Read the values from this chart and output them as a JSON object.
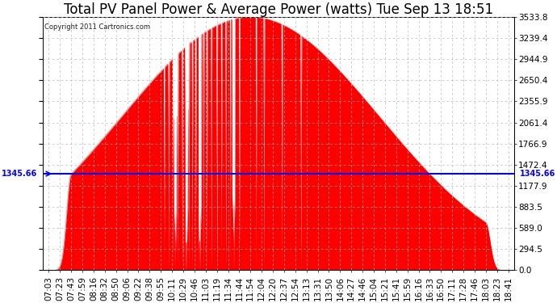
{
  "title": "Total PV Panel Power & Average Power (watts) Tue Sep 13 18:51",
  "copyright": "Copyright 2011 Cartronics.com",
  "ymax": 3533.8,
  "ymin": 0.0,
  "yticks": [
    0.0,
    294.5,
    589.0,
    883.5,
    1177.9,
    1472.4,
    1766.9,
    2061.4,
    2355.9,
    2650.4,
    2944.9,
    3239.4,
    3533.8
  ],
  "avg_line_y": 1345.66,
  "avg_label": "1345.66",
  "background_color": "#ffffff",
  "fill_color": "#ff0000",
  "avg_line_color": "#0000ff",
  "grid_color": "#bbbbbb",
  "title_fontsize": 12,
  "tick_fontsize": 7.5,
  "xtick_labels": [
    "07:03",
    "07:23",
    "07:43",
    "07:59",
    "08:16",
    "08:32",
    "08:50",
    "09:06",
    "09:22",
    "09:38",
    "09:55",
    "10:11",
    "10:29",
    "10:46",
    "11:03",
    "11:19",
    "11:34",
    "11:44",
    "11:54",
    "12:04",
    "12:20",
    "12:37",
    "12:54",
    "13:13",
    "13:31",
    "13:50",
    "14:06",
    "14:27",
    "14:46",
    "15:04",
    "15:21",
    "15:41",
    "15:59",
    "16:16",
    "16:33",
    "16:50",
    "17:11",
    "17:28",
    "17:46",
    "18:03",
    "18:23",
    "18:41"
  ]
}
